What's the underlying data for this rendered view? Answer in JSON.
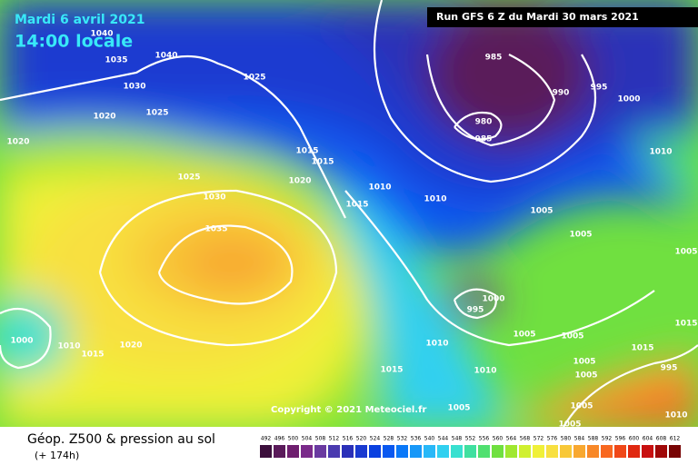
{
  "header": {
    "date": "Mardi 6 avril 2021",
    "time": "14:00 locale",
    "run": "Run GFS 6 Z du Mardi 30 mars 2021"
  },
  "copyright": "Copyright © 2021 Meteociel.fr",
  "footer": {
    "title": "Géop. Z500 & pression au sol",
    "lead": "(+ 174h)"
  },
  "legend": {
    "values": [
      492,
      496,
      500,
      504,
      508,
      512,
      516,
      520,
      524,
      528,
      532,
      536,
      540,
      544,
      548,
      552,
      556,
      560,
      564,
      568,
      572,
      576,
      580,
      584,
      588,
      592,
      596,
      600,
      604,
      608,
      612
    ],
    "colors": [
      "#3c0f3c",
      "#5a1a5a",
      "#6e1e6e",
      "#7a2a8a",
      "#6a3aa0",
      "#4a3ab0",
      "#2a30b8",
      "#1a3ad0",
      "#0a40e0",
      "#0a58f0",
      "#0a78f8",
      "#1898f8",
      "#28b8f8",
      "#30d0f0",
      "#38e0d0",
      "#40e0a0",
      "#50e070",
      "#70e040",
      "#a0e830",
      "#d0f030",
      "#f0f038",
      "#f8e040",
      "#f8c838",
      "#f8a830",
      "#f88828",
      "#f86820",
      "#f04818",
      "#e02810",
      "#c81010",
      "#a00808",
      "#780404"
    ]
  },
  "isobar_labels": [
    "1040",
    "1035",
    "1040",
    "1030",
    "1025",
    "1025",
    "1020",
    "1020",
    "1015",
    "1015",
    "1025",
    "1020",
    "1030",
    "1035",
    "1010",
    "1010",
    "1015",
    "1005",
    "1005",
    "985",
    "990",
    "995",
    "1000",
    "980",
    "985",
    "1010",
    "1005",
    "1000",
    "995",
    "1005",
    "1005",
    "1010",
    "1015",
    "1010",
    "1015",
    "1020",
    "1000",
    "995",
    "1015",
    "1010",
    "1005",
    "1005",
    "1005",
    "1015",
    "1005",
    "1010",
    "1005"
  ]
}
